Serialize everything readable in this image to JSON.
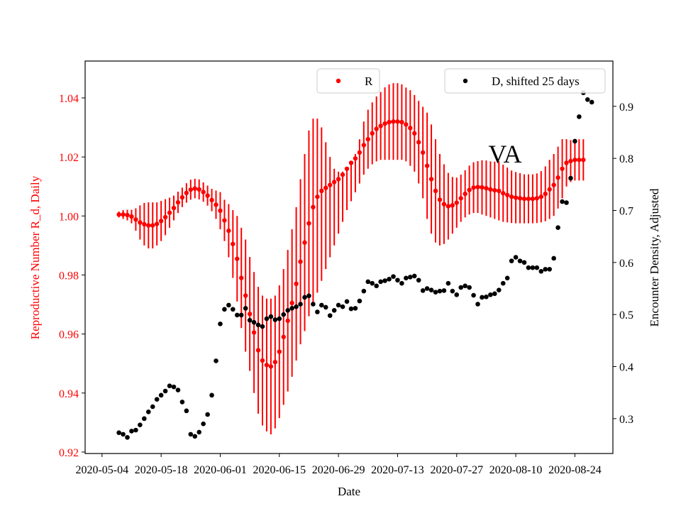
{
  "chart_data": {
    "type": "scatter",
    "annotation": "VA",
    "xlabel": "Date",
    "ylabel_left": "Reproductive Number R_d, Daily",
    "ylabel_right": "Encounter Density, Adjusted",
    "x_ticks": [
      "2020-05-04",
      "2020-05-18",
      "2020-06-01",
      "2020-06-15",
      "2020-06-29",
      "2020-07-13",
      "2020-07-27",
      "2020-08-10",
      "2020-08-24"
    ],
    "y_left_ticks": [
      "0.92",
      "0.94",
      "0.96",
      "0.98",
      "1.00",
      "1.02",
      "1.04"
    ],
    "y_right_ticks": [
      "0.3",
      "0.4",
      "0.5",
      "0.6",
      "0.7",
      "0.8",
      "0.9"
    ],
    "x_range": [
      "2020-04-30",
      "2020-09-02"
    ],
    "y_left_range": [
      0.9195,
      1.0525
    ],
    "y_right_range": [
      0.233,
      0.987
    ],
    "colors": {
      "R": "#ff0000",
      "D": "#000000"
    },
    "legend": [
      {
        "label": "R",
        "position": "top-center"
      },
      {
        "label": "D, shifted 25 days",
        "position": "top-right"
      }
    ],
    "series": [
      {
        "name": "R",
        "axis": "left",
        "start": "2020-05-08",
        "values": [
          1.0005,
          1.0005,
          1.0003,
          0.9998,
          0.9988,
          0.9978,
          0.9972,
          0.9968,
          0.9968,
          0.9973,
          0.9983,
          0.9996,
          1.0011,
          1.0027,
          1.0046,
          1.0063,
          1.0078,
          1.0089,
          1.0093,
          1.009,
          1.0081,
          1.0069,
          1.0054,
          1.0038,
          1.0018,
          0.9985,
          0.995,
          0.9905,
          0.9855,
          0.979,
          0.973,
          0.9668,
          0.9605,
          0.9545,
          0.951,
          0.9495,
          0.949,
          0.9505,
          0.954,
          0.959,
          0.9645,
          0.9705,
          0.977,
          0.9845,
          0.991,
          0.9975,
          1.003,
          1.0065,
          1.0085,
          1.0095,
          1.0105,
          1.0115,
          1.0125,
          1.014,
          1.016,
          1.018,
          1.0195,
          1.0215,
          1.024,
          1.026,
          1.028,
          1.0295,
          1.0305,
          1.0313,
          1.0318,
          1.032,
          1.032,
          1.0318,
          1.031,
          1.0298,
          1.028,
          1.025,
          1.0215,
          1.017,
          1.0125,
          1.0085,
          1.0055,
          1.004,
          1.0033,
          1.0036,
          1.0045,
          1.006,
          1.0075,
          1.0088,
          1.0096,
          1.0098,
          1.0097,
          1.0094,
          1.009,
          1.0087,
          1.0085,
          1.0077,
          1.0071,
          1.0065,
          1.0062,
          1.006,
          1.0058,
          1.0058,
          1.0058,
          1.006,
          1.0065,
          1.0075,
          1.009,
          1.0105,
          1.013,
          1.016,
          1.018,
          1.0186,
          1.019,
          1.019,
          1.019
        ],
        "lower": [
          0.9995,
          0.999,
          0.9985,
          0.9975,
          0.995,
          0.992,
          0.99,
          0.989,
          0.989,
          0.99,
          0.9915,
          0.9935,
          0.996,
          0.9985,
          1.001,
          1.003,
          1.0045,
          1.0055,
          1.006,
          1.0056,
          1.0048,
          1.0035,
          1.0016,
          0.999,
          0.9955,
          0.9915,
          0.986,
          0.979,
          0.971,
          0.962,
          0.954,
          0.9475,
          0.94,
          0.933,
          0.929,
          0.927,
          0.926,
          0.928,
          0.9315,
          0.936,
          0.9405,
          0.9455,
          0.951,
          0.9565,
          0.961,
          0.966,
          0.97,
          0.974,
          0.978,
          0.982,
          0.986,
          0.99,
          0.994,
          0.998,
          1.002,
          1.005,
          1.008,
          1.011,
          1.014,
          1.016,
          1.0175,
          1.0185,
          1.019,
          1.019,
          1.019,
          1.019,
          1.019,
          1.019,
          1.0185,
          1.017,
          1.015,
          1.011,
          1.006,
          0.999,
          0.994,
          0.991,
          0.99,
          0.9905,
          0.992,
          0.994,
          0.996,
          0.998,
          0.9995,
          1.0005,
          1.001,
          1.001,
          1.0005,
          1.0,
          0.9995,
          0.999,
          0.9985,
          0.998,
          0.9978,
          0.9976,
          0.9975,
          0.9975,
          0.9975,
          0.9975,
          0.9975,
          0.9976,
          0.9978,
          0.9982,
          0.999,
          1.0,
          1.0025,
          1.006,
          1.01,
          1.0115,
          1.012,
          1.012,
          1.012
        ],
        "upper": [
          1.0015,
          1.002,
          1.0021,
          1.0021,
          1.0026,
          1.0036,
          1.0044,
          1.0046,
          1.0046,
          1.0046,
          1.0051,
          1.0057,
          1.0062,
          1.0069,
          1.0082,
          1.0096,
          1.0111,
          1.0123,
          1.0126,
          1.0124,
          1.0114,
          1.0103,
          1.0092,
          1.0086,
          1.0081,
          1.0055,
          1.004,
          1.002,
          1.0,
          0.996,
          0.992,
          0.9861,
          0.981,
          0.976,
          0.973,
          0.972,
          0.972,
          0.973,
          0.9765,
          0.982,
          0.9885,
          0.9955,
          1.003,
          1.0125,
          1.021,
          1.029,
          1.033,
          1.033,
          1.03,
          1.025,
          1.02,
          1.016,
          1.015,
          1.015,
          1.016,
          1.018,
          1.021,
          1.026,
          1.032,
          1.036,
          1.0385,
          1.0405,
          1.042,
          1.0436,
          1.0446,
          1.045,
          1.045,
          1.0446,
          1.0435,
          1.0426,
          1.041,
          1.039,
          1.037,
          1.035,
          1.031,
          1.026,
          1.021,
          1.0175,
          1.0146,
          1.0132,
          1.013,
          1.014,
          1.0155,
          1.0171,
          1.0182,
          1.0186,
          1.0189,
          1.0188,
          1.0185,
          1.0184,
          1.0185,
          1.0174,
          1.0164,
          1.0154,
          1.0149,
          1.0145,
          1.0141,
          1.0141,
          1.0141,
          1.0144,
          1.0152,
          1.0168,
          1.019,
          1.021,
          1.0235,
          1.026,
          1.026,
          1.0257,
          1.026,
          1.026,
          1.026
        ]
      },
      {
        "name": "D, shifted 25 days",
        "axis": "right",
        "start": "2020-05-08",
        "values": [
          0.273,
          0.27,
          0.264,
          0.276,
          0.278,
          0.288,
          0.3,
          0.313,
          0.323,
          0.337,
          0.345,
          0.353,
          0.363,
          0.361,
          0.355,
          0.332,
          0.315,
          0.27,
          0.266,
          0.274,
          0.29,
          0.308,
          0.345,
          0.411,
          0.482,
          0.51,
          0.518,
          0.51,
          0.499,
          0.499,
          0.512,
          0.489,
          0.485,
          0.48,
          0.477,
          0.492,
          0.496,
          0.49,
          0.492,
          0.5,
          0.508,
          0.512,
          0.515,
          0.52,
          0.533,
          0.536,
          0.52,
          0.505,
          0.518,
          0.514,
          0.498,
          0.508,
          0.518,
          0.515,
          0.525,
          0.511,
          0.512,
          0.526,
          0.545,
          0.563,
          0.56,
          0.555,
          0.563,
          0.565,
          0.568,
          0.573,
          0.566,
          0.56,
          0.57,
          0.572,
          0.574,
          0.566,
          0.546,
          0.55,
          0.547,
          0.543,
          0.545,
          0.546,
          0.56,
          0.545,
          0.538,
          0.552,
          0.555,
          0.552,
          0.537,
          0.52,
          0.533,
          0.534,
          0.538,
          0.54,
          0.547,
          0.56,
          0.57,
          0.603,
          0.61,
          0.603,
          0.6,
          0.59,
          0.59,
          0.59,
          0.583,
          0.587,
          0.587,
          0.608,
          0.667,
          0.717,
          0.715,
          0.762,
          0.833,
          0.88,
          0.926,
          0.913,
          0.908
        ]
      }
    ]
  }
}
